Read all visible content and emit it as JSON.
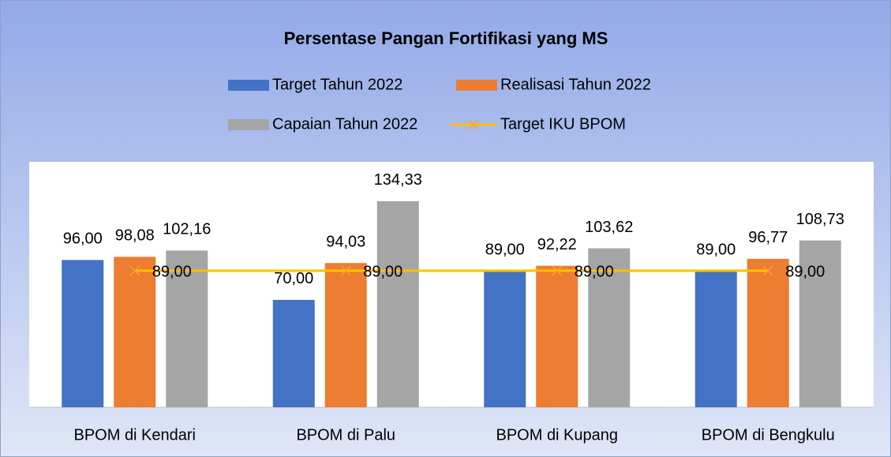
{
  "chart_data": {
    "type": "bar",
    "title": "Persentase Pangan Fortifikasi yang MS",
    "categories": [
      "BPOM di Kendari",
      "BPOM di Palu",
      "BPOM di Kupang",
      "BPOM di Bengkulu"
    ],
    "series": [
      {
        "name": "Target Tahun 2022",
        "color": "#4472C4",
        "values": [
          96,
          70,
          89,
          89
        ],
        "value_labels": [
          "96,00",
          "70,00",
          "89,00",
          "89,00"
        ]
      },
      {
        "name": "Realisasi Tahun 2022",
        "color": "#ED7D31",
        "values": [
          98.08,
          94.03,
          92.22,
          96.77
        ],
        "value_labels": [
          "98,08",
          "94,03",
          "92,22",
          "96,77"
        ]
      },
      {
        "name": "Capaian Tahun 2022",
        "color": "#A5A5A5",
        "values": [
          102.16,
          134.33,
          103.62,
          108.73
        ],
        "value_labels": [
          "102,16",
          "134,33",
          "103,62",
          "108,73"
        ]
      },
      {
        "name": "Target IKU BPOM",
        "color": "#FFC000",
        "type": "line",
        "values": [
          89,
          89,
          89,
          89
        ],
        "value_labels": [
          "89,00",
          "89,00",
          "89,00",
          "89,00"
        ]
      }
    ],
    "ylim": [
      0,
      160
    ]
  }
}
